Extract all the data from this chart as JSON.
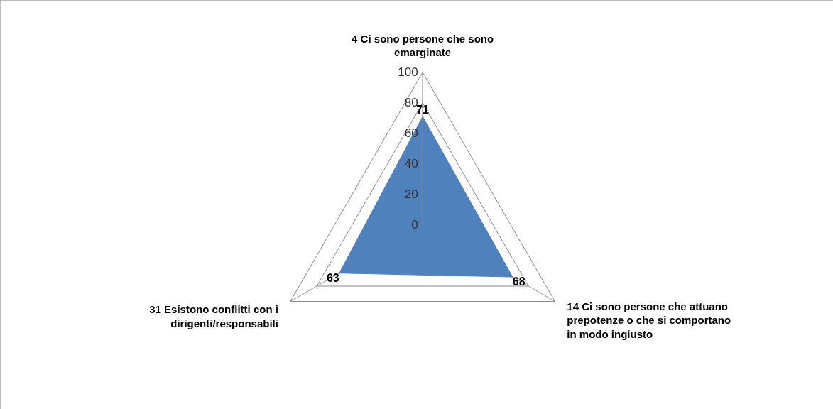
{
  "chart_data": {
    "type": "radar",
    "categories": [
      "4 Ci sono persone che sono emarginate",
      "14 Ci sono persone che attuano prepotenze o che si comportano in modo ingiusto",
      "31 Esistono conflitti con i dirigenti/responsabili"
    ],
    "series": [
      {
        "color": "#4f81bd",
        "values": [
          71,
          68,
          63
        ]
      }
    ],
    "ylim": [
      0,
      100
    ],
    "yticks": [
      0,
      20,
      40,
      60,
      80,
      100
    ],
    "data_labels": true,
    "grid": true
  }
}
